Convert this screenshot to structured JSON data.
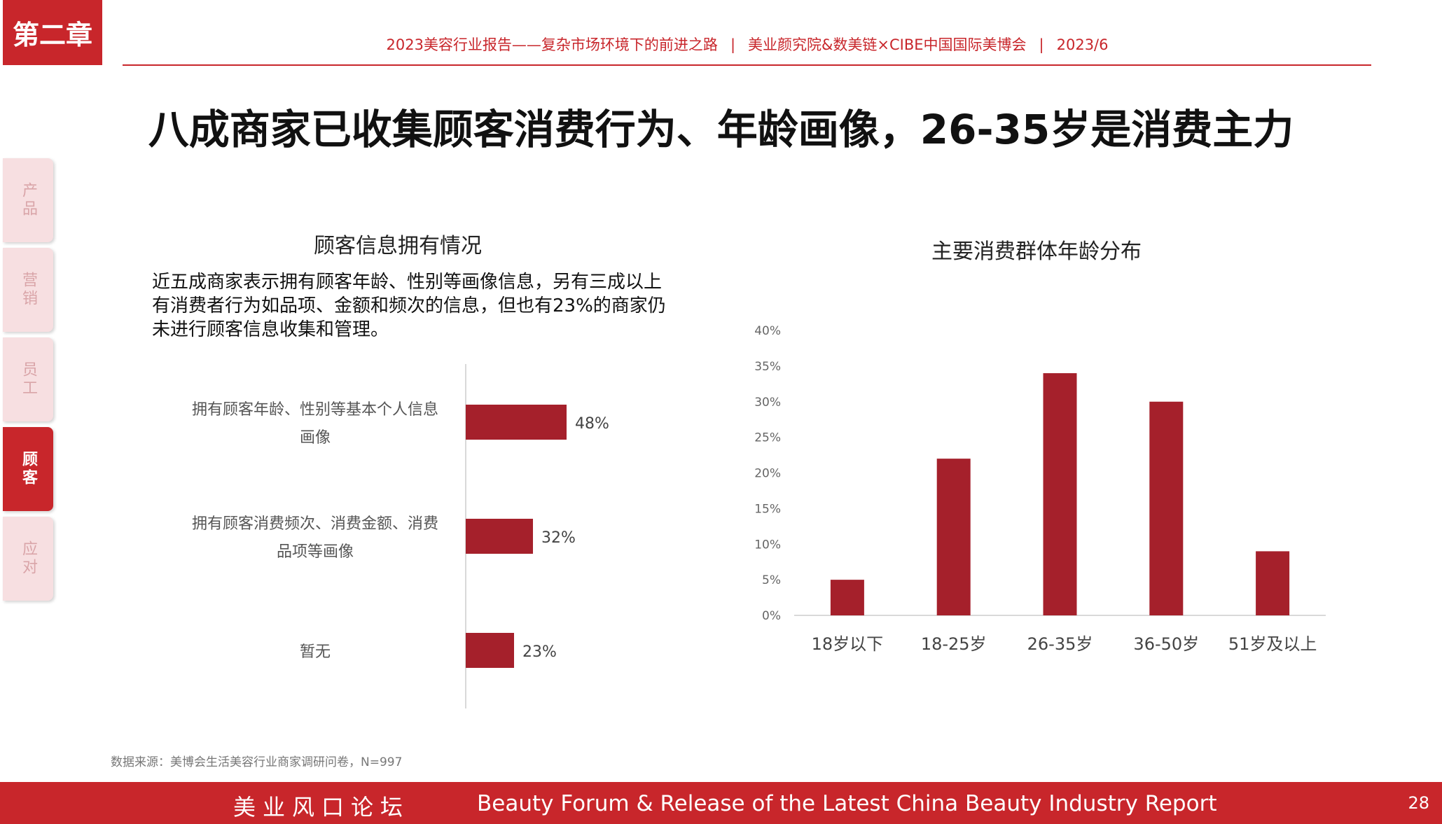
{
  "header": {
    "chapter": "第二章",
    "report": "2023美容行业报告——复杂市场环境下的前进之路",
    "orgs": "美业颜究院&数美链×CIBE中国国际美博会",
    "date": "2023/6",
    "separator": "|"
  },
  "title": "八成商家已收集顾客消费行为、年龄画像，26-35岁是消费主力",
  "side_tabs": [
    {
      "label": "产品",
      "active": false
    },
    {
      "label": "营销",
      "active": false
    },
    {
      "label": "员工",
      "active": false
    },
    {
      "label": "顾客",
      "active": true
    },
    {
      "label": "应对",
      "active": false
    }
  ],
  "left_panel": {
    "title": "顾客信息拥有情况",
    "description": "近五成商家表示拥有顾客年龄、性别等画像信息，另有三成以上有消费者行为如品项、金额和频次的信息，但也有23%的商家仍未进行顾客信息收集和管理。"
  },
  "right_panel": {
    "title": "主要消费群体年龄分布"
  },
  "chart_data": [
    {
      "type": "bar",
      "orientation": "horizontal",
      "title": "顾客信息拥有情况",
      "categories": [
        [
          "拥有顾客年龄、性别等基本个人信息",
          "画像"
        ],
        [
          "拥有顾客消费频次、消费金额、消费",
          "品项等画像"
        ],
        [
          "暂无"
        ]
      ],
      "values": [
        48,
        32,
        23
      ],
      "value_labels": [
        "48%",
        "32%",
        "23%"
      ],
      "unit": "%",
      "xlim": [
        0,
        100
      ],
      "color": "#a5202b"
    },
    {
      "type": "bar",
      "orientation": "vertical",
      "title": "主要消费群体年龄分布",
      "categories": [
        "18岁以下",
        "18-25岁",
        "26-35岁",
        "36-50岁",
        "51岁及以上"
      ],
      "values": [
        5,
        22,
        34,
        30,
        9
      ],
      "ylim": [
        0,
        40
      ],
      "yticks": [
        "0%",
        "5%",
        "10%",
        "15%",
        "20%",
        "25%",
        "30%",
        "35%",
        "40%"
      ],
      "color": "#a5202b"
    }
  ],
  "footnote": "数据来源：美博会生活美容行业商家调研问卷，N=997",
  "footer": {
    "left": "美业风口论坛",
    "middle": "Beauty Forum & Release of the Latest China Beauty Industry Report",
    "page": "28"
  }
}
